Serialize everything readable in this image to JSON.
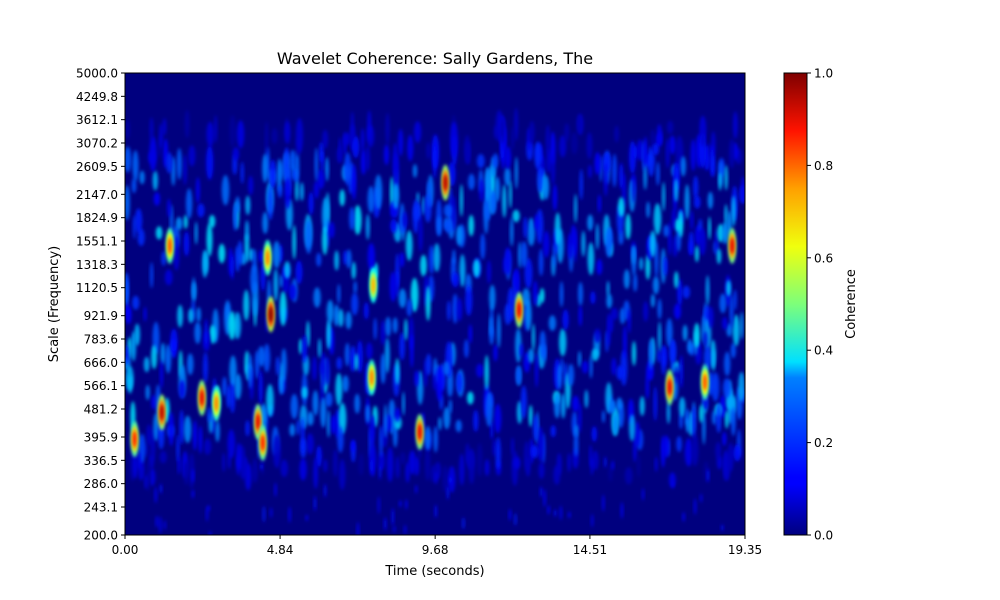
{
  "chart_data": {
    "type": "heatmap",
    "title": "Wavelet Coherence: Sally Gardens, The",
    "xlabel": "Time (seconds)",
    "ylabel": "Scale (Frequency)",
    "xlim": [
      0.0,
      19.35
    ],
    "ylim": [
      200.0,
      5000.0
    ],
    "y_scale": "log",
    "x_ticks": [
      "0.00",
      "4.84",
      "9.68",
      "14.51",
      "19.35"
    ],
    "y_ticks": [
      "200.0",
      "243.1",
      "286.0",
      "336.5",
      "395.9",
      "481.2",
      "566.1",
      "666.0",
      "783.6",
      "921.9",
      "1120.5",
      "1318.3",
      "1551.1",
      "1824.9",
      "2147.0",
      "2609.5",
      "3070.2",
      "3612.1",
      "4249.8",
      "5000.0"
    ],
    "colormap": "jet",
    "colorbar": {
      "label": "Coherence",
      "range": [
        0.0,
        1.0
      ],
      "ticks": [
        "0.0",
        "0.2",
        "0.4",
        "0.6",
        "0.8",
        "1.0"
      ]
    },
    "band_summary": {
      "low_coherence_region": {
        "scale_range": [
          200.0,
          336.5
        ],
        "typical_value": 0.03
      },
      "active_region": {
        "scale_range": [
          336.5,
          3070.2
        ],
        "typical_value": 0.2
      }
    },
    "hotspots": [
      {
        "time": 0.3,
        "scale": 390,
        "value": 0.85
      },
      {
        "time": 1.15,
        "scale": 470,
        "value": 0.95
      },
      {
        "time": 1.4,
        "scale": 1500,
        "value": 0.8
      },
      {
        "time": 2.4,
        "scale": 520,
        "value": 0.9
      },
      {
        "time": 2.85,
        "scale": 500,
        "value": 0.75
      },
      {
        "time": 4.15,
        "scale": 440,
        "value": 0.9
      },
      {
        "time": 4.3,
        "scale": 380,
        "value": 0.85
      },
      {
        "time": 4.45,
        "scale": 1380,
        "value": 0.75
      },
      {
        "time": 4.55,
        "scale": 930,
        "value": 1.0
      },
      {
        "time": 7.7,
        "scale": 600,
        "value": 0.75
      },
      {
        "time": 7.75,
        "scale": 1140,
        "value": 0.7
      },
      {
        "time": 9.2,
        "scale": 410,
        "value": 0.9
      },
      {
        "time": 10.0,
        "scale": 2330,
        "value": 0.95
      },
      {
        "time": 12.3,
        "scale": 960,
        "value": 0.9
      },
      {
        "time": 17.0,
        "scale": 560,
        "value": 0.9
      },
      {
        "time": 18.1,
        "scale": 580,
        "value": 0.8
      },
      {
        "time": 18.95,
        "scale": 1500,
        "value": 0.9
      }
    ]
  }
}
